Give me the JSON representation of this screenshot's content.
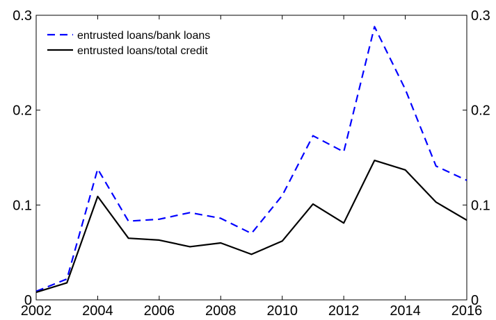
{
  "chart_data": {
    "type": "line",
    "x": [
      2002,
      2003,
      2004,
      2005,
      2006,
      2007,
      2008,
      2009,
      2010,
      2011,
      2012,
      2013,
      2014,
      2015,
      2016
    ],
    "series": [
      {
        "name": "entrusted loans/bank loans",
        "color": "#0000ff",
        "style": "dashed",
        "values": [
          0.009,
          0.022,
          0.138,
          0.083,
          0.085,
          0.092,
          0.086,
          0.07,
          0.11,
          0.173,
          0.156,
          0.288,
          0.222,
          0.141,
          0.126
        ]
      },
      {
        "name": "entrusted loans/total credit",
        "color": "#000000",
        "style": "solid",
        "values": [
          0.008,
          0.018,
          0.109,
          0.065,
          0.063,
          0.056,
          0.06,
          0.048,
          0.062,
          0.101,
          0.081,
          0.147,
          0.137,
          0.103,
          0.084
        ]
      }
    ],
    "xlim": [
      2002,
      2016
    ],
    "ylim": [
      0,
      0.3
    ],
    "x_ticks": [
      "2002",
      "2004",
      "2006",
      "2008",
      "2010",
      "2012",
      "2014",
      "2016"
    ],
    "y_ticks": [
      "0",
      "0.1",
      "0.2",
      "0.3"
    ],
    "legend_position": "top-left",
    "grid": false
  }
}
